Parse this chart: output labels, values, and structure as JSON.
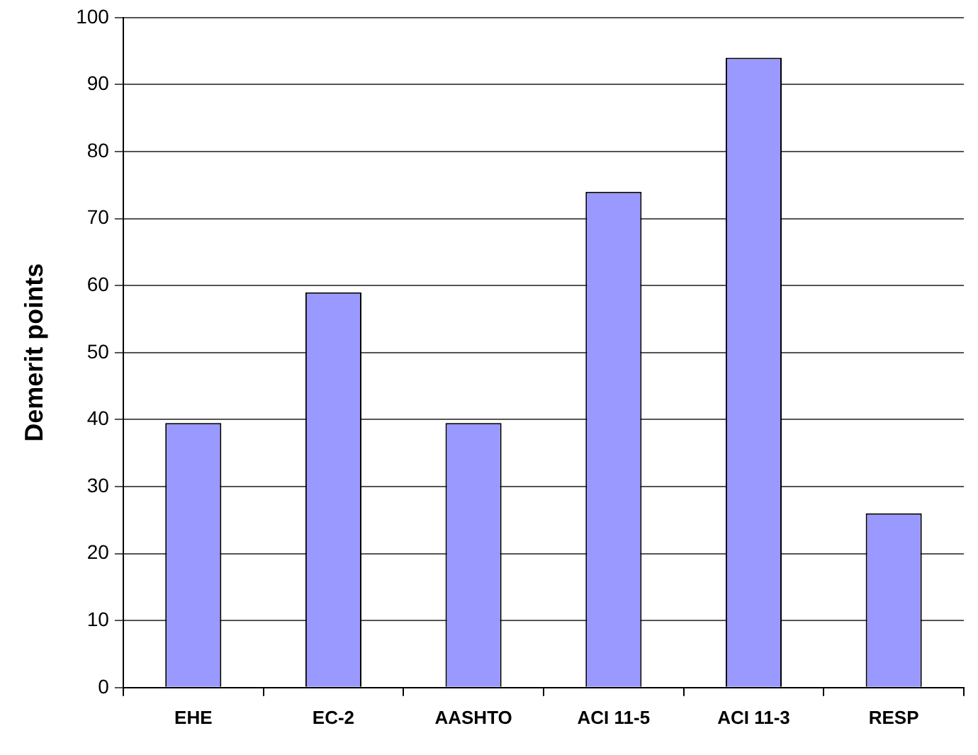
{
  "chart_data": {
    "type": "bar",
    "ylabel": "Demerit points",
    "categories": [
      "EHE",
      "EC-2",
      "AASHTO",
      "ACI 11-5",
      "ACI 11-3",
      "RESP"
    ],
    "values": [
      39.5,
      59,
      39.5,
      74,
      94,
      26
    ],
    "color": "#9999ff",
    "ylim": [
      0,
      100
    ],
    "yticks": [
      0,
      10,
      20,
      30,
      40,
      50,
      60,
      70,
      80,
      90,
      100
    ],
    "grid": "y",
    "legend": false
  }
}
